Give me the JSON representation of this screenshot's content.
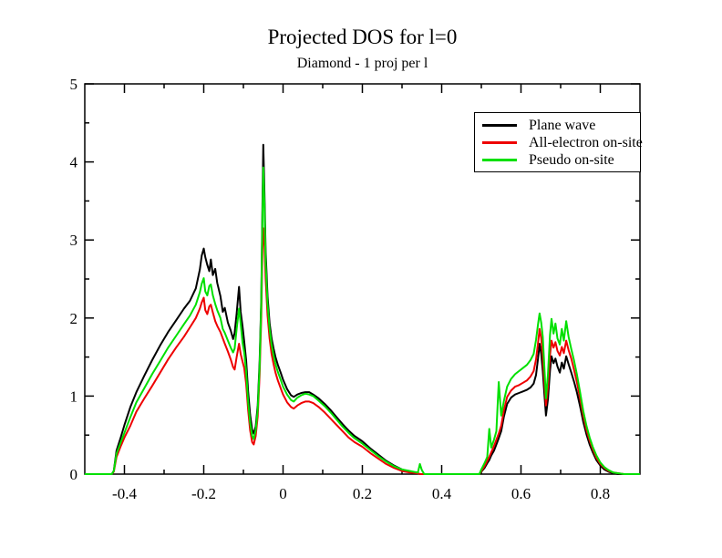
{
  "page": {
    "background": "#ffffff"
  },
  "chart_data": {
    "type": "line",
    "title": "Projected DOS for l=0",
    "subtitle": "Diamond - 1 proj per l",
    "xlabel": "",
    "ylabel": "",
    "xlim": [
      -0.5,
      0.9
    ],
    "ylim": [
      0,
      5
    ],
    "grid": false,
    "axis_color": "#000000",
    "x_major_ticks": [
      -0.4,
      -0.2,
      0,
      0.2,
      0.4,
      0.6,
      0.8
    ],
    "x_major_labels": [
      "-0.4",
      "-0.2",
      "0",
      "0.2",
      "0.4",
      "0.6",
      "0.8"
    ],
    "x_minor_ticks": [
      -0.3,
      -0.1,
      0.1,
      0.3,
      0.5,
      0.7
    ],
    "y_major_ticks": [
      0,
      1,
      2,
      3,
      4,
      5
    ],
    "y_major_labels": [
      "0",
      "1",
      "2",
      "3",
      "4",
      "5"
    ],
    "y_minor_ticks": [
      0.5,
      1.5,
      2.5,
      3.5,
      4.5
    ],
    "legend": {
      "position": "top-right",
      "entries": [
        {
          "label": "Plane wave",
          "color": "#000000"
        },
        {
          "label": "All-electron on-site",
          "color": "#ee0000"
        },
        {
          "label": "Pseudo on-site",
          "color": "#00e000"
        }
      ]
    },
    "x": [
      -0.5,
      -0.432,
      -0.427,
      -0.42,
      -0.41,
      -0.4,
      -0.385,
      -0.37,
      -0.35,
      -0.33,
      -0.31,
      -0.29,
      -0.27,
      -0.25,
      -0.235,
      -0.22,
      -0.21,
      -0.205,
      -0.2,
      -0.196,
      -0.191,
      -0.186,
      -0.182,
      -0.177,
      -0.171,
      -0.166,
      -0.158,
      -0.152,
      -0.147,
      -0.139,
      -0.132,
      -0.126,
      -0.122,
      -0.117,
      -0.111,
      -0.107,
      -0.102,
      -0.098,
      -0.093,
      -0.088,
      -0.083,
      -0.078,
      -0.074,
      -0.069,
      -0.064,
      -0.059,
      -0.055,
      -0.052,
      -0.05,
      -0.047,
      -0.044,
      -0.039,
      -0.034,
      -0.029,
      -0.024,
      -0.019,
      -0.013,
      -0.006,
      0,
      0.01,
      0.02,
      0.027,
      0.036,
      0.046,
      0.056,
      0.066,
      0.076,
      0.09,
      0.105,
      0.12,
      0.135,
      0.15,
      0.165,
      0.18,
      0.2,
      0.22,
      0.24,
      0.26,
      0.28,
      0.3,
      0.32,
      0.34,
      0.345,
      0.35,
      0.356,
      0.42,
      0.495,
      0.5,
      0.508,
      0.515,
      0.52,
      0.525,
      0.532,
      0.538,
      0.544,
      0.55,
      0.557,
      0.565,
      0.575,
      0.585,
      0.595,
      0.605,
      0.615,
      0.624,
      0.632,
      0.638,
      0.643,
      0.647,
      0.651,
      0.655,
      0.659,
      0.663,
      0.668,
      0.673,
      0.677,
      0.682,
      0.687,
      0.692,
      0.698,
      0.703,
      0.708,
      0.714,
      0.72,
      0.727,
      0.734,
      0.741,
      0.749,
      0.757,
      0.765,
      0.773,
      0.781,
      0.79,
      0.8,
      0.81,
      0.821,
      0.833,
      0.846,
      0.86,
      0.9
    ],
    "series": [
      {
        "name": "Plane wave",
        "color": "#000000",
        "values": [
          0,
          0,
          0.04,
          0.3,
          0.46,
          0.63,
          0.86,
          1.05,
          1.26,
          1.46,
          1.65,
          1.82,
          1.97,
          2.12,
          2.22,
          2.38,
          2.62,
          2.8,
          2.89,
          2.78,
          2.68,
          2.6,
          2.75,
          2.55,
          2.63,
          2.45,
          2.28,
          2.08,
          2.13,
          1.94,
          1.84,
          1.73,
          1.81,
          2.06,
          2.4,
          2.08,
          1.89,
          1.7,
          1.46,
          1.06,
          0.76,
          0.57,
          0.52,
          0.61,
          0.88,
          1.45,
          2.25,
          3.45,
          4.22,
          3.6,
          2.85,
          2.28,
          1.94,
          1.74,
          1.61,
          1.5,
          1.4,
          1.3,
          1.21,
          1.09,
          1.01,
          0.99,
          1.02,
          1.04,
          1.05,
          1.05,
          1.02,
          0.97,
          0.9,
          0.82,
          0.73,
          0.64,
          0.56,
          0.49,
          0.42,
          0.33,
          0.25,
          0.17,
          0.11,
          0.06,
          0.03,
          0.01,
          0,
          0,
          0,
          0,
          0,
          0.03,
          0.08,
          0.14,
          0.18,
          0.24,
          0.3,
          0.38,
          0.46,
          0.55,
          0.74,
          0.9,
          0.98,
          1.02,
          1.04,
          1.06,
          1.08,
          1.11,
          1.16,
          1.27,
          1.48,
          1.67,
          1.54,
          1.32,
          1.02,
          0.75,
          0.96,
          1.32,
          1.51,
          1.42,
          1.48,
          1.38,
          1.3,
          1.43,
          1.35,
          1.51,
          1.41,
          1.3,
          1.18,
          1.05,
          0.87,
          0.67,
          0.51,
          0.38,
          0.28,
          0.18,
          0.11,
          0.06,
          0.03,
          0.01,
          0,
          0,
          0
        ]
      },
      {
        "name": "All-electron on-site",
        "color": "#ee0000",
        "values": [
          0,
          0,
          0.03,
          0.22,
          0.35,
          0.47,
          0.62,
          0.8,
          0.97,
          1.13,
          1.3,
          1.47,
          1.62,
          1.76,
          1.88,
          2.0,
          2.12,
          2.2,
          2.26,
          2.1,
          2.05,
          2.15,
          2.17,
          2.07,
          1.96,
          1.9,
          1.82,
          1.74,
          1.67,
          1.57,
          1.47,
          1.37,
          1.34,
          1.5,
          1.67,
          1.54,
          1.44,
          1.36,
          1.16,
          0.82,
          0.56,
          0.41,
          0.38,
          0.49,
          0.74,
          1.28,
          2.02,
          2.88,
          3.15,
          2.95,
          2.5,
          2.03,
          1.74,
          1.54,
          1.41,
          1.3,
          1.2,
          1.1,
          1.02,
          0.92,
          0.86,
          0.84,
          0.88,
          0.91,
          0.93,
          0.93,
          0.91,
          0.86,
          0.79,
          0.71,
          0.63,
          0.55,
          0.47,
          0.41,
          0.35,
          0.27,
          0.2,
          0.13,
          0.08,
          0.04,
          0.02,
          0.01,
          0,
          0,
          0,
          0,
          0,
          0.04,
          0.1,
          0.17,
          0.22,
          0.28,
          0.36,
          0.44,
          0.52,
          0.62,
          0.82,
          0.99,
          1.07,
          1.12,
          1.14,
          1.17,
          1.2,
          1.25,
          1.32,
          1.47,
          1.68,
          1.86,
          1.74,
          1.52,
          1.18,
          0.88,
          1.12,
          1.52,
          1.71,
          1.62,
          1.69,
          1.58,
          1.52,
          1.63,
          1.55,
          1.71,
          1.59,
          1.48,
          1.33,
          1.18,
          0.97,
          0.75,
          0.57,
          0.43,
          0.32,
          0.21,
          0.13,
          0.08,
          0.04,
          0.02,
          0.01,
          0,
          0
        ]
      },
      {
        "name": "Pseudo on-site",
        "color": "#00e000",
        "values": [
          0,
          0,
          0.04,
          0.26,
          0.4,
          0.53,
          0.73,
          0.92,
          1.1,
          1.28,
          1.45,
          1.62,
          1.77,
          1.92,
          2.03,
          2.17,
          2.33,
          2.44,
          2.51,
          2.34,
          2.29,
          2.41,
          2.43,
          2.29,
          2.18,
          2.1,
          2.0,
          1.86,
          1.81,
          1.71,
          1.62,
          1.56,
          1.61,
          1.86,
          2.12,
          1.93,
          1.68,
          1.56,
          1.32,
          0.92,
          0.66,
          0.49,
          0.45,
          0.56,
          0.82,
          1.38,
          2.18,
          3.32,
          3.93,
          3.45,
          2.7,
          2.18,
          1.86,
          1.66,
          1.52,
          1.41,
          1.31,
          1.21,
          1.12,
          1.02,
          0.95,
          0.93,
          0.98,
          1.01,
          1.03,
          1.02,
          1.0,
          0.94,
          0.87,
          0.79,
          0.7,
          0.61,
          0.53,
          0.46,
          0.39,
          0.31,
          0.23,
          0.16,
          0.1,
          0.06,
          0.04,
          0.02,
          0.13,
          0.05,
          0,
          0,
          0,
          0.06,
          0.14,
          0.22,
          0.58,
          0.34,
          0.44,
          0.55,
          1.18,
          0.75,
          0.94,
          1.12,
          1.22,
          1.28,
          1.32,
          1.36,
          1.4,
          1.46,
          1.54,
          1.72,
          1.92,
          2.06,
          1.94,
          1.76,
          1.36,
          0.97,
          1.28,
          1.78,
          1.99,
          1.8,
          1.93,
          1.74,
          1.66,
          1.86,
          1.71,
          1.96,
          1.76,
          1.6,
          1.45,
          1.28,
          1.05,
          0.81,
          0.62,
          0.47,
          0.35,
          0.24,
          0.15,
          0.09,
          0.05,
          0.02,
          0.01,
          0,
          0
        ]
      }
    ]
  }
}
